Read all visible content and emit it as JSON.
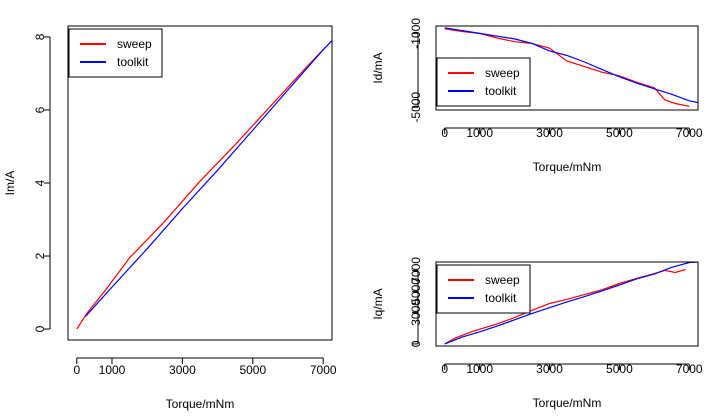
{
  "chart_data": [
    {
      "type": "line",
      "id": "im",
      "xlabel": "Torque/mNm",
      "ylabel": "Im/A",
      "xlim": [
        -250,
        7250
      ],
      "ylim": [
        -0.3,
        8.3
      ],
      "xticks": [
        0,
        1000,
        3000,
        5000,
        7000
      ],
      "yticks": [
        0,
        2,
        4,
        6,
        8
      ],
      "legend": {
        "position": "top-left"
      },
      "series": [
        {
          "name": "sweep",
          "color": "#ff0000",
          "x": [
            0,
            300,
            800,
            1500,
            2500,
            3500,
            4500,
            5500,
            6500,
            7000
          ],
          "y": [
            0.0,
            0.45,
            1.05,
            1.95,
            2.95,
            4.05,
            5.05,
            6.1,
            7.15,
            7.65
          ]
        },
        {
          "name": "toolkit",
          "color": "#0000ff",
          "x": [
            250,
            1000,
            2000,
            3000,
            4000,
            5000,
            6000,
            7000,
            7250
          ],
          "y": [
            0.35,
            1.15,
            2.2,
            3.3,
            4.35,
            5.45,
            6.55,
            7.65,
            7.9
          ]
        }
      ]
    },
    {
      "type": "line",
      "id": "id",
      "xlabel": "Torque/mNm",
      "ylabel": "Id/mA",
      "xlim": [
        -250,
        7250
      ],
      "ylim": [
        -5150,
        -600
      ],
      "xticks": [
        0,
        1000,
        3000,
        5000,
        7000
      ],
      "yticks": [
        -1000,
        -5000
      ],
      "legend": {
        "position": "bottom-left"
      },
      "series": [
        {
          "name": "sweep",
          "color": "#ff0000",
          "x": [
            0,
            500,
            1000,
            1500,
            2000,
            2500,
            3000,
            3500,
            4000,
            4500,
            5000,
            5500,
            6000,
            6300,
            6600,
            7000
          ],
          "y": [
            -750,
            -900,
            -1000,
            -1250,
            -1450,
            -1550,
            -1800,
            -2500,
            -2800,
            -3100,
            -3300,
            -3650,
            -3950,
            -4600,
            -4800,
            -4950
          ]
        },
        {
          "name": "toolkit",
          "color": "#0000ff",
          "x": [
            0,
            500,
            1000,
            1500,
            2000,
            2500,
            3000,
            3500,
            4000,
            4500,
            5000,
            5500,
            6000,
            6500,
            7000,
            7250
          ],
          "y": [
            -700,
            -850,
            -1000,
            -1150,
            -1300,
            -1550,
            -1950,
            -2200,
            -2550,
            -2950,
            -3350,
            -3700,
            -4000,
            -4300,
            -4650,
            -4750
          ]
        }
      ]
    },
    {
      "type": "line",
      "id": "iq",
      "xlabel": "Torque/mNm",
      "ylabel": "Iq/mA",
      "xlim": [
        -250,
        7250
      ],
      "ylim": [
        -200,
        7800
      ],
      "xticks": [
        0,
        1000,
        3000,
        5000,
        7000
      ],
      "yticks": [
        0,
        3000,
        5000,
        7000
      ],
      "legend": {
        "position": "top-left"
      },
      "series": [
        {
          "name": "sweep",
          "color": "#ff0000",
          "x": [
            0,
            300,
            800,
            1500,
            2000,
            2500,
            3000,
            3500,
            4000,
            4500,
            5000,
            5500,
            6000,
            6300,
            6600,
            6900
          ],
          "y": [
            0,
            550,
            1200,
            1900,
            2500,
            3200,
            3850,
            4250,
            4700,
            5150,
            5750,
            6250,
            6700,
            7000,
            6800,
            7100
          ]
        },
        {
          "name": "toolkit",
          "color": "#0000ff",
          "x": [
            0,
            500,
            1000,
            1500,
            2000,
            2500,
            3000,
            3500,
            4000,
            4500,
            5000,
            5500,
            6000,
            6500,
            7000,
            7250
          ],
          "y": [
            0,
            650,
            1150,
            1700,
            2300,
            2900,
            3450,
            4000,
            4500,
            5050,
            5600,
            6200,
            6650,
            7300,
            7750,
            7800
          ]
        }
      ]
    }
  ]
}
